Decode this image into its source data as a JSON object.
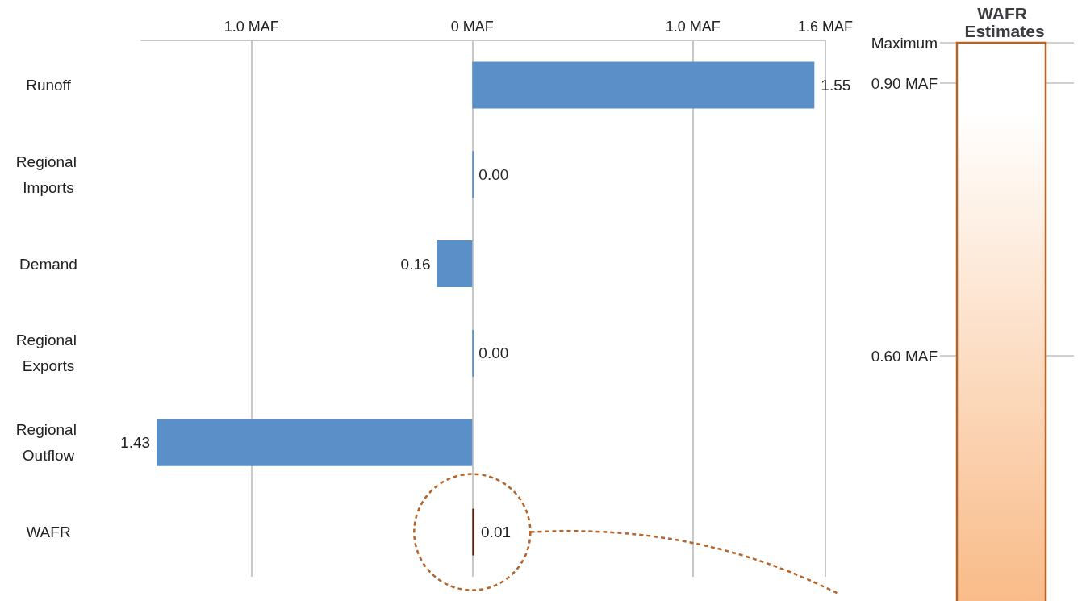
{
  "chart_data": [
    {
      "type": "bar",
      "orientation": "horizontal",
      "categories": [
        "Runoff",
        "Regional Imports",
        "Demand",
        "Regional Exports",
        "Regional Outflow",
        "WAFR"
      ],
      "values": [
        1.55,
        0.0,
        0.16,
        0.0,
        1.43,
        0.01
      ],
      "base": [
        0,
        0,
        -0.16,
        0,
        -1.43,
        0
      ],
      "colors": [
        "#5b8fc7",
        "#5b8fc7",
        "#5b8fc7",
        "#5b8fc7",
        "#5b8fc7",
        "#5a2418"
      ],
      "value_labels": [
        "1.55",
        "0.00",
        "0.16",
        "0.00",
        "1.43",
        "0.01"
      ],
      "xlim": [
        -1.5,
        1.6
      ],
      "xticks": [
        {
          "value": -1.0,
          "label": "1.0 MAF"
        },
        {
          "value": 0,
          "label": "0 MAF"
        },
        {
          "value": 1.0,
          "label": "1.0 MAF"
        },
        {
          "value": 1.6,
          "label": "1.6 MAF"
        }
      ],
      "grid": "x"
    },
    {
      "type": "other",
      "title": "WAFR Estimates",
      "annotations": [
        "Maximum",
        "0.90 MAF",
        "0.60 MAF"
      ]
    }
  ]
}
